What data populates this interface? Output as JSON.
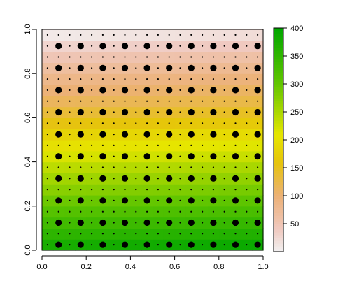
{
  "chart_data": {
    "type": "heatmap",
    "title": "",
    "xlabel": "",
    "ylabel": "",
    "xlim": [
      0,
      1
    ],
    "ylim": [
      0,
      1
    ],
    "x_ticks": [
      "0.0",
      "0.2",
      "0.4",
      "0.6",
      "0.8",
      "1.0"
    ],
    "y_ticks": [
      "0.0",
      "0.2",
      "0.4",
      "0.6",
      "0.8",
      "1.0"
    ],
    "x_tick_values": [
      0,
      0.2,
      0.4,
      0.6,
      0.8,
      1.0
    ],
    "y_tick_values": [
      0,
      0.2,
      0.4,
      0.6,
      0.8,
      1.0
    ],
    "grid": false,
    "legend": "right",
    "colorbar": {
      "ticks": [
        "50",
        "100",
        "150",
        "200",
        "250",
        "300",
        "350",
        "400"
      ],
      "tick_values": [
        50,
        100,
        150,
        200,
        250,
        300,
        350,
        400
      ],
      "range": [
        0,
        400
      ],
      "stops": [
        {
          "value": 0,
          "color": "#f2f2f2"
        },
        {
          "value": 40,
          "color": "#f0c9c0"
        },
        {
          "value": 100,
          "color": "#ecb176"
        },
        {
          "value": 160,
          "color": "#e6c40b"
        },
        {
          "value": 210,
          "color": "#e6e600"
        },
        {
          "value": 300,
          "color": "#63c600"
        },
        {
          "value": 400,
          "color": "#00a600"
        }
      ]
    },
    "raster": {
      "description_units": "value by y position (value varies mostly with y, slight x variation)",
      "rows_y": [
        0.0,
        0.05,
        0.1,
        0.15,
        0.2,
        0.25,
        0.3,
        0.35,
        0.4,
        0.45,
        0.5,
        0.55,
        0.6,
        0.65,
        0.7,
        0.75,
        0.8,
        0.85,
        0.9,
        0.95,
        1.0
      ],
      "row_values": [
        395,
        370,
        350,
        330,
        310,
        290,
        270,
        255,
        235,
        215,
        200,
        175,
        150,
        130,
        110,
        100,
        80,
        65,
        45,
        25,
        5
      ]
    },
    "large_points": {
      "x": [
        0.075,
        0.175,
        0.275,
        0.375,
        0.475,
        0.575,
        0.675,
        0.775,
        0.875,
        0.975
      ],
      "y": [
        0.025,
        0.125,
        0.225,
        0.325,
        0.425,
        0.525,
        0.625,
        0.725,
        0.825,
        0.925
      ]
    },
    "small_points": {
      "x": [
        0.025,
        0.075,
        0.125,
        0.175,
        0.225,
        0.275,
        0.325,
        0.375,
        0.425,
        0.475,
        0.525,
        0.575,
        0.625,
        0.675,
        0.725,
        0.775,
        0.825,
        0.875,
        0.925,
        0.975
      ],
      "y": [
        0.025,
        0.075,
        0.125,
        0.175,
        0.225,
        0.275,
        0.325,
        0.375,
        0.425,
        0.475,
        0.525,
        0.575,
        0.625,
        0.675,
        0.725,
        0.775,
        0.825,
        0.875,
        0.925,
        0.975
      ]
    }
  }
}
